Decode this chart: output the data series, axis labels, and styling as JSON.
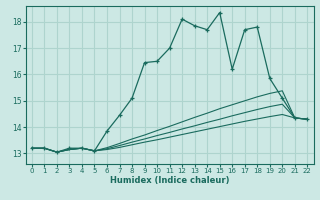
{
  "xlabel": "Humidex (Indice chaleur)",
  "bg_color": "#cce8e4",
  "line_color": "#1a6b5e",
  "grid_color": "#aed4ce",
  "xlim": [
    -0.5,
    22.5
  ],
  "ylim": [
    12.6,
    18.6
  ],
  "xticks": [
    0,
    1,
    2,
    3,
    4,
    5,
    6,
    7,
    8,
    9,
    10,
    11,
    12,
    13,
    14,
    15,
    16,
    17,
    18,
    19,
    20,
    21,
    22
  ],
  "yticks": [
    13,
    14,
    15,
    16,
    17,
    18
  ],
  "series": [
    {
      "x": [
        0,
        1,
        2,
        3,
        4,
        5,
        6,
        7,
        8,
        9,
        10,
        11,
        12,
        13,
        14,
        15,
        16,
        17,
        18,
        19,
        20,
        21,
        22
      ],
      "y": [
        13.2,
        13.2,
        13.05,
        13.2,
        13.2,
        13.1,
        13.85,
        14.45,
        15.1,
        16.45,
        16.5,
        17.0,
        18.1,
        17.85,
        17.7,
        18.35,
        16.2,
        17.7,
        17.8,
        15.85,
        15.1,
        14.35,
        14.3
      ],
      "marker": true
    },
    {
      "x": [
        0,
        1,
        2,
        3,
        4,
        5,
        6,
        7,
        8,
        9,
        10,
        11,
        12,
        13,
        14,
        15,
        16,
        17,
        18,
        19,
        20,
        21,
        22
      ],
      "y": [
        13.2,
        13.2,
        13.05,
        13.15,
        13.2,
        13.1,
        13.22,
        13.38,
        13.55,
        13.7,
        13.87,
        14.03,
        14.2,
        14.37,
        14.53,
        14.7,
        14.85,
        15.0,
        15.15,
        15.28,
        15.38,
        14.35,
        14.3
      ],
      "marker": false
    },
    {
      "x": [
        0,
        1,
        2,
        3,
        4,
        5,
        6,
        7,
        8,
        9,
        10,
        11,
        12,
        13,
        14,
        15,
        16,
        17,
        18,
        19,
        20,
        21,
        22
      ],
      "y": [
        13.2,
        13.2,
        13.05,
        13.15,
        13.2,
        13.1,
        13.18,
        13.3,
        13.43,
        13.55,
        13.68,
        13.8,
        13.93,
        14.05,
        14.18,
        14.3,
        14.43,
        14.55,
        14.67,
        14.78,
        14.87,
        14.35,
        14.3
      ],
      "marker": false
    },
    {
      "x": [
        0,
        1,
        2,
        3,
        4,
        5,
        6,
        7,
        8,
        9,
        10,
        11,
        12,
        13,
        14,
        15,
        16,
        17,
        18,
        19,
        20,
        21,
        22
      ],
      "y": [
        13.2,
        13.2,
        13.05,
        13.15,
        13.2,
        13.1,
        13.15,
        13.23,
        13.33,
        13.43,
        13.52,
        13.62,
        13.72,
        13.82,
        13.92,
        14.02,
        14.12,
        14.22,
        14.31,
        14.4,
        14.48,
        14.35,
        14.3
      ],
      "marker": false
    }
  ]
}
